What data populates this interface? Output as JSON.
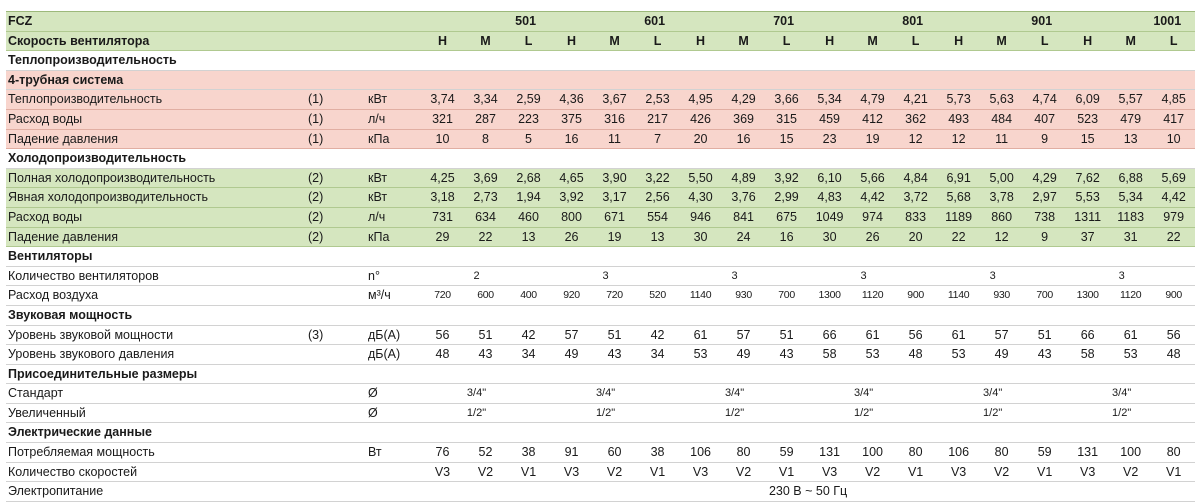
{
  "table": {
    "model_label": "FCZ",
    "models": [
      "501",
      "601",
      "701",
      "801",
      "901",
      "1001"
    ],
    "speed_label": "Скорость вентилятора",
    "speeds": [
      "H",
      "M",
      "L",
      "H",
      "M",
      "L",
      "H",
      "M",
      "L",
      "H",
      "M",
      "L",
      "H",
      "M",
      "L",
      "H",
      "M",
      "L"
    ],
    "heating_title": "Теплопроизводительность",
    "pipe_system_title": "4-трубная система",
    "heating_rows": [
      {
        "label": "Теплопроизводительность",
        "ref": "(1)",
        "unit": "кВт",
        "values": [
          "3,74",
          "3,34",
          "2,59",
          "4,36",
          "3,67",
          "2,53",
          "4,95",
          "4,29",
          "3,66",
          "5,34",
          "4,79",
          "4,21",
          "5,73",
          "5,63",
          "4,74",
          "6,09",
          "5,57",
          "4,85"
        ]
      },
      {
        "label": "Расход воды",
        "ref": "(1)",
        "unit": "л/ч",
        "values": [
          "321",
          "287",
          "223",
          "375",
          "316",
          "217",
          "426",
          "369",
          "315",
          "459",
          "412",
          "362",
          "493",
          "484",
          "407",
          "523",
          "479",
          "417"
        ]
      },
      {
        "label": "Падение давления",
        "ref": "(1)",
        "unit": "кПа",
        "values": [
          "10",
          "8",
          "5",
          "16",
          "11",
          "7",
          "20",
          "16",
          "15",
          "23",
          "19",
          "12",
          "12",
          "11",
          "9",
          "15",
          "13",
          "10"
        ]
      }
    ],
    "cooling_title": "Холодопроизводительность",
    "cooling_rows": [
      {
        "label": "Полная холодопроизводительность",
        "ref": "(2)",
        "unit": "кВт",
        "values": [
          "4,25",
          "3,69",
          "2,68",
          "4,65",
          "3,90",
          "3,22",
          "5,50",
          "4,89",
          "3,92",
          "6,10",
          "5,66",
          "4,84",
          "6,91",
          "5,00",
          "4,29",
          "7,62",
          "6,88",
          "5,69"
        ]
      },
      {
        "label": "Явная холодопроизводительность",
        "ref": "(2)",
        "unit": "кВт",
        "values": [
          "3,18",
          "2,73",
          "1,94",
          "3,92",
          "3,17",
          "2,56",
          "4,30",
          "3,76",
          "2,99",
          "4,83",
          "4,42",
          "3,72",
          "5,68",
          "3,78",
          "2,97",
          "5,53",
          "5,34",
          "4,42"
        ]
      },
      {
        "label": "Расход воды",
        "ref": "(2)",
        "unit": "л/ч",
        "values": [
          "731",
          "634",
          "460",
          "800",
          "671",
          "554",
          "946",
          "841",
          "675",
          "1049",
          "974",
          "833",
          "1189",
          "860",
          "738",
          "1311",
          "1183",
          "979"
        ]
      },
      {
        "label": "Падение давления",
        "ref": "(2)",
        "unit": "кПа",
        "values": [
          "29",
          "22",
          "13",
          "26",
          "19",
          "13",
          "30",
          "24",
          "16",
          "30",
          "26",
          "20",
          "22",
          "12",
          "9",
          "37",
          "31",
          "22"
        ]
      }
    ],
    "fans_title": "Вентиляторы",
    "fan_count": {
      "label": "Количество вентиляторов",
      "unit": "n°",
      "values": [
        "2",
        "3",
        "3",
        "3",
        "3",
        "3"
      ]
    },
    "airflow": {
      "label": "Расход воздуха",
      "unit": "м³/ч",
      "values": [
        "720",
        "600",
        "400",
        "920",
        "720",
        "520",
        "1140",
        "930",
        "700",
        "1300",
        "1120",
        "900",
        "1140",
        "930",
        "700",
        "1300",
        "1120",
        "900"
      ]
    },
    "sound_title": "Звуковая мощность",
    "sound_rows": [
      {
        "label": "Уровень звуковой мощности",
        "ref": "(3)",
        "unit": "дБ(A)",
        "values": [
          "56",
          "51",
          "42",
          "57",
          "51",
          "42",
          "61",
          "57",
          "51",
          "66",
          "61",
          "56",
          "61",
          "57",
          "51",
          "66",
          "61",
          "56"
        ]
      },
      {
        "label": "Уровень звукового давления",
        "ref": "",
        "unit": "дБ(A)",
        "values": [
          "48",
          "43",
          "34",
          "49",
          "43",
          "34",
          "53",
          "49",
          "43",
          "58",
          "53",
          "48",
          "53",
          "49",
          "43",
          "58",
          "53",
          "48"
        ]
      }
    ],
    "connections_title": "Присоединительные размеры",
    "connection_rows": [
      {
        "label": "Стандарт",
        "unit": "Ø",
        "values": [
          "3/4\"",
          "3/4\"",
          "3/4\"",
          "3/4\"",
          "3/4\"",
          "3/4\""
        ]
      },
      {
        "label": "Увеличенный",
        "unit": "Ø",
        "values": [
          "1/2\"",
          "1/2\"",
          "1/2\"",
          "1/2\"",
          "1/2\"",
          "1/2\""
        ]
      }
    ],
    "electrical_title": "Электрические данные",
    "power": {
      "label": "Потребляемая мощность",
      "unit": "Вт",
      "values": [
        "76",
        "52",
        "38",
        "91",
        "60",
        "38",
        "106",
        "80",
        "59",
        "131",
        "100",
        "80",
        "106",
        "80",
        "59",
        "131",
        "100",
        "80"
      ]
    },
    "speed_count": {
      "label": "Количество скоростей",
      "unit": "",
      "values": [
        "V3",
        "V2",
        "V1",
        "V3",
        "V2",
        "V1",
        "V3",
        "V2",
        "V1",
        "V3",
        "V2",
        "V1",
        "V3",
        "V2",
        "V1",
        "V3",
        "V2",
        "V1"
      ]
    },
    "supply": {
      "label": "Электропитание",
      "value": "230 В ~ 50 Гц"
    }
  }
}
